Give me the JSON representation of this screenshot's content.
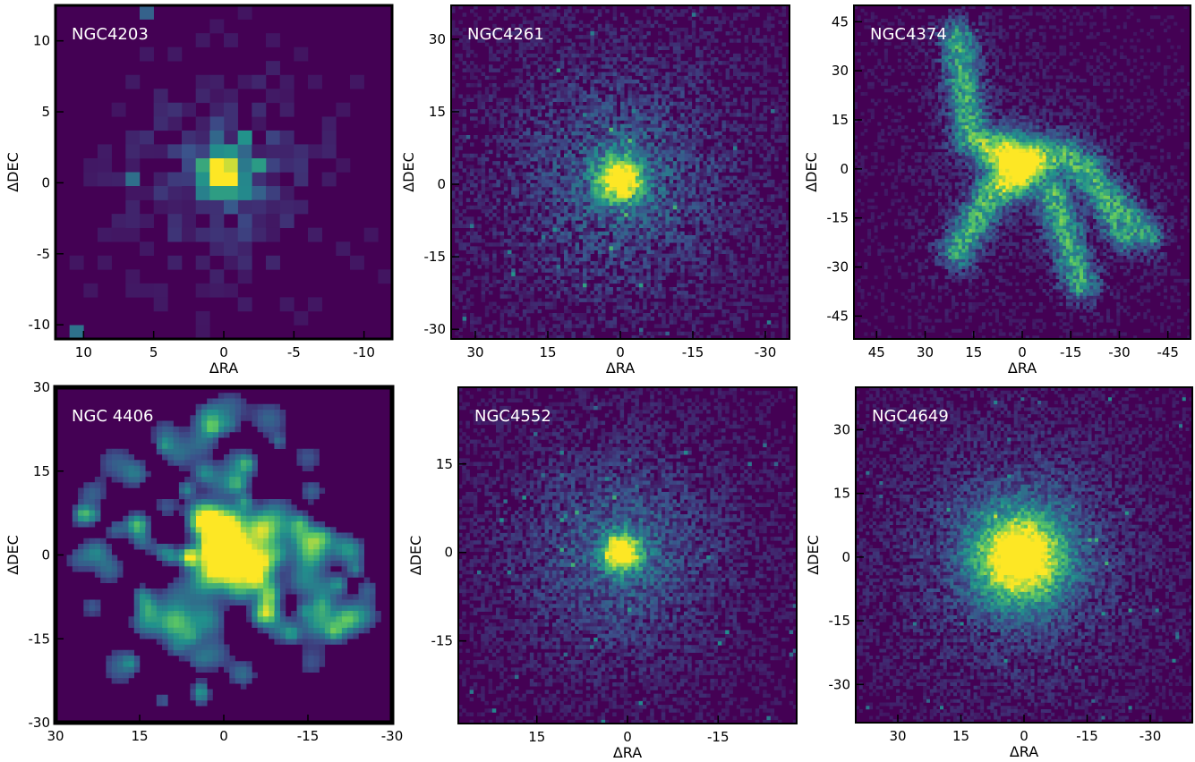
{
  "figure": {
    "colormap": [
      "#440154",
      "#3b528b",
      "#21918c",
      "#5ec962",
      "#fde725"
    ]
  },
  "chart_data": [
    {
      "type": "heatmap",
      "title": "NGC4203",
      "xlabel": "ΔRA",
      "ylabel": "ΔDEC",
      "xlim": [
        12,
        -12
      ],
      "ylim": [
        -11,
        12.5
      ],
      "xticks": [
        10,
        5,
        0,
        -5,
        -10
      ],
      "yticks": [
        10,
        5,
        0,
        -5,
        -10
      ],
      "xticklabels": [
        "10",
        "5",
        "0",
        "-5",
        "-10"
      ],
      "yticklabels": [
        "10",
        "5",
        "0",
        "-5",
        "-10"
      ],
      "image": {
        "style": "pixelated",
        "core_center": [
          0,
          0.6
        ],
        "core_radius": 1,
        "halo_radius": 3,
        "noise": 0.25
      }
    },
    {
      "type": "heatmap",
      "title": "NGC4261",
      "xlabel": "ΔRA",
      "ylabel": "ΔDEC",
      "xlim": [
        35,
        -35
      ],
      "ylim": [
        -32,
        37
      ],
      "xticks": [
        30,
        15,
        0,
        -15,
        -30
      ],
      "yticks": [
        30,
        15,
        0,
        -15,
        -30
      ],
      "xticklabels": [
        "30",
        "15",
        "0",
        "-15",
        "-30"
      ],
      "yticklabels": [
        "30",
        "15",
        "0",
        "-15",
        "-30"
      ],
      "image": {
        "style": "pixelated",
        "core_center": [
          0,
          1
        ],
        "core_radius": 3,
        "halo_radius": 15,
        "noise": 0.35
      }
    },
    {
      "type": "heatmap",
      "title": "NGC4374",
      "xlabel": "ΔRA",
      "ylabel": "ΔDEC",
      "xlim": [
        52,
        -52
      ],
      "ylim": [
        -52,
        50
      ],
      "xticks": [
        45,
        30,
        15,
        0,
        -15,
        -30,
        -45
      ],
      "yticks": [
        45,
        30,
        15,
        0,
        -15,
        -30,
        -45
      ],
      "xticklabels": [
        "45",
        "30",
        "15",
        "0",
        "-15",
        "-30",
        "-45"
      ],
      "yticklabels": [
        "45",
        "30",
        "15",
        "0",
        "-15",
        "-30",
        "-45"
      ],
      "image": {
        "style": "filamentary",
        "core_center": [
          2,
          2
        ],
        "core_radius": 6,
        "halo_radius": 20,
        "noise": 0.3
      }
    },
    {
      "type": "heatmap",
      "title": "NGC 4406",
      "xlabel": "",
      "ylabel": "ΔDEC",
      "xlim": [
        30,
        -30
      ],
      "ylim": [
        -30,
        30
      ],
      "xticks": [
        30,
        15,
        0,
        -15,
        -30
      ],
      "yticks": [
        30,
        15,
        0,
        -15,
        -30
      ],
      "xticklabels": [
        "30",
        "15",
        "0",
        "-15",
        "-30"
      ],
      "yticklabels": [
        "30",
        "15",
        "0",
        "-15",
        "-30"
      ],
      "image": {
        "style": "smoothed",
        "core_center": [
          -1,
          -1
        ],
        "core_radius": 3,
        "halo_radius": 12,
        "noise": 0.2
      }
    },
    {
      "type": "heatmap",
      "title": "NGC4552",
      "xlabel": "ΔRA",
      "ylabel": "ΔDEC",
      "xlim": [
        28,
        -28
      ],
      "ylim": [
        -29,
        28
      ],
      "xticks": [
        15,
        0,
        -15
      ],
      "yticks": [
        15,
        0,
        -15
      ],
      "xticklabels": [
        "15",
        "0",
        "-15"
      ],
      "yticklabels": [
        "15",
        "0",
        "-15"
      ],
      "image": {
        "style": "pixelated",
        "core_center": [
          1,
          0
        ],
        "core_radius": 2,
        "halo_radius": 12,
        "noise": 0.3
      }
    },
    {
      "type": "heatmap",
      "title": "NGC4649",
      "xlabel": "ΔRA",
      "ylabel": "ΔDEC",
      "xlim": [
        40,
        -40
      ],
      "ylim": [
        -39,
        40
      ],
      "xticks": [
        30,
        15,
        0,
        -15,
        -30
      ],
      "yticks": [
        30,
        15,
        0,
        -15,
        -30
      ],
      "xticklabels": [
        "30",
        "15",
        "0",
        "-15",
        "-30"
      ],
      "yticklabels": [
        "30",
        "15",
        "0",
        "-15",
        "-30"
      ],
      "image": {
        "style": "pixelated",
        "core_center": [
          1,
          0
        ],
        "core_radius": 7,
        "halo_radius": 18,
        "noise": 0.3
      }
    }
  ]
}
